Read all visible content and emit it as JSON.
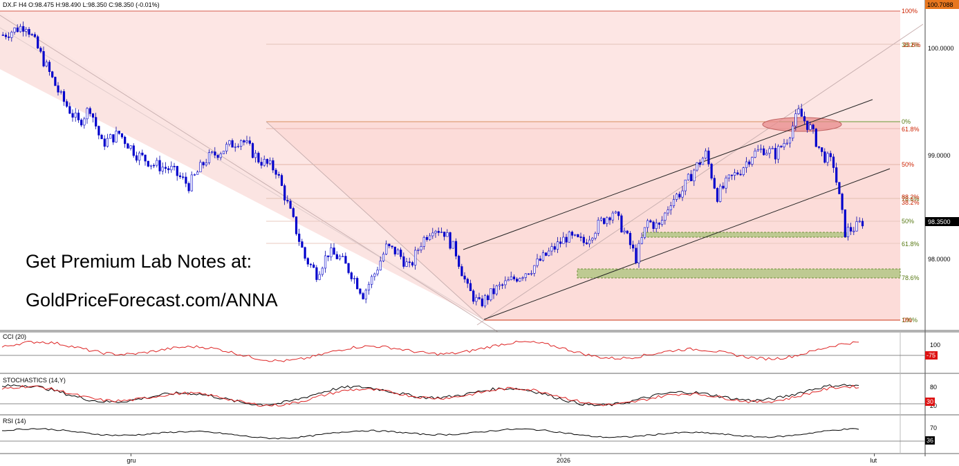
{
  "header": {
    "symbol": "DX.F",
    "timeframe": "H4",
    "ohlc": "O:98.475  H:98.490  L:98.350  C:98.350  (-0.01%)"
  },
  "promo": {
    "line1": "Get Premium Lab Notes at:",
    "line2": "GoldPriceForecast.com/ANNA"
  },
  "x_axis_labels": [
    {
      "label": "gru",
      "index": 42
    },
    {
      "label": "2026",
      "index": 190
    },
    {
      "label": "lut",
      "index": 298
    }
  ],
  "chart_data": [
    {
      "type": "candlestick",
      "price_axis": {
        "ticks": [
          "100.0000",
          "99.0000",
          "98.0000"
        ],
        "last_price": "98.3500",
        "top_label": "100.7088"
      },
      "fib_labels": [
        "100%",
        "38.2%",
        "23.6%",
        "0%",
        "61.8%",
        "78.6%",
        "50%",
        "88.2%",
        "38.2%",
        "50%",
        "61.8%",
        "78.6%",
        "100%",
        "0%"
      ],
      "colors": {
        "candle": "#0000cc",
        "fib_red": "#cc2200",
        "fib_green": "#557711",
        "support_zone": "#8fae5a",
        "resistance_ellipse": "#e08080"
      }
    },
    {
      "type": "line",
      "name": "CCI (20)",
      "ticks": [
        "100"
      ],
      "last_value": "-75",
      "color": "#dd2222"
    },
    {
      "type": "line",
      "name": "STOCHASTICS (14,Y)",
      "ticks": [
        "80",
        "20"
      ],
      "last_value": "30",
      "colors": [
        "#000000",
        "#dd2222"
      ]
    },
    {
      "type": "line",
      "name": "RSI (14)",
      "ticks": [
        "70"
      ],
      "last_value": "36",
      "color": "#000000"
    }
  ]
}
